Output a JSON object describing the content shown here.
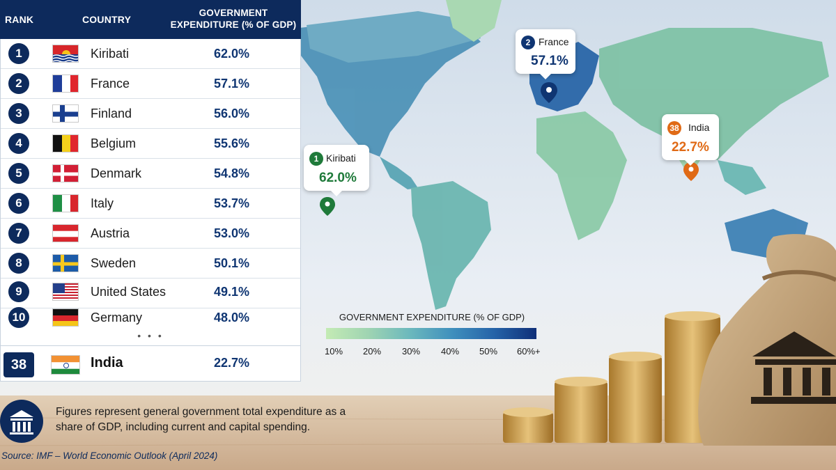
{
  "table": {
    "headers": {
      "rank": "RANK",
      "country": "COUNTRY",
      "expenditure": "GOVERNMENT EXPENDITURE (% OF GDP)"
    },
    "rows": [
      {
        "rank": "1",
        "country": "Kiribati",
        "value": "62.0%",
        "flag": "kiribati"
      },
      {
        "rank": "2",
        "country": "France",
        "value": "57.1%",
        "flag": "france"
      },
      {
        "rank": "3",
        "country": "Finland",
        "value": "56.0%",
        "flag": "finland"
      },
      {
        "rank": "4",
        "country": "Belgium",
        "value": "55.6%",
        "flag": "belgium"
      },
      {
        "rank": "5",
        "country": "Denmark",
        "value": "54.8%",
        "flag": "denmark"
      },
      {
        "rank": "6",
        "country": "Italy",
        "value": "53.7%",
        "flag": "italy"
      },
      {
        "rank": "7",
        "country": "Austria",
        "value": "53.0%",
        "flag": "austria"
      },
      {
        "rank": "8",
        "country": "Sweden",
        "value": "50.1%",
        "flag": "sweden"
      },
      {
        "rank": "9",
        "country": "United States",
        "value": "49.1%",
        "flag": "united-states"
      },
      {
        "rank": "10",
        "country": "Germany",
        "value": "48.0%",
        "flag": "germany"
      }
    ],
    "ellipsis": "• • •",
    "highlight": {
      "rank": "38",
      "country": "India",
      "value": "22.7%",
      "flag": "india"
    }
  },
  "map": {
    "callouts": [
      {
        "rank": "2",
        "country": "France",
        "value": "57.1%",
        "color": "#0f3572"
      },
      {
        "rank": "38",
        "country": "India",
        "value": "22.7%",
        "color": "#e06a16"
      },
      {
        "rank": "1",
        "country": "Kiribati",
        "value": "62.0%",
        "color": "#1f7a3a"
      }
    ],
    "legend": {
      "title": "GOVERNMENT EXPENDITURE (% OF GDP)",
      "ticks": [
        "10%",
        "20%",
        "30%",
        "40%",
        "50%",
        "60%+"
      ],
      "colors": [
        "#c4ebb4",
        "#9fd4b2",
        "#6bb8bd",
        "#3f8fbd",
        "#2563a8",
        "#0f2f78"
      ]
    }
  },
  "note": {
    "icon": "government-building-icon",
    "text": "Figures represent general government total expenditure as a share of GDP, including current and capital spending.",
    "source": "Source: IMF – World Economic Outlook (April 2024)"
  },
  "colors": {
    "navy": "#0d2a5c",
    "value_blue": "#0f3572",
    "kiribati_green": "#1f7a3a",
    "india_orange": "#e06a16"
  }
}
